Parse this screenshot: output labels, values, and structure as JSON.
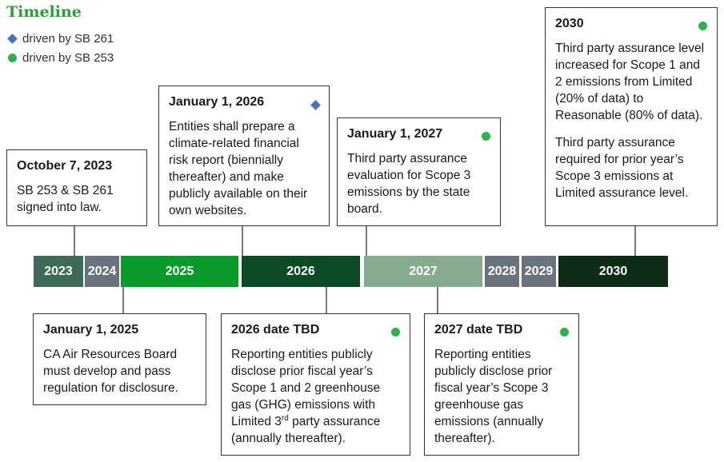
{
  "title": "Timeline",
  "legend": [
    {
      "label": "driven by SB 261",
      "icon": "diamond",
      "color": "#4a72b0"
    },
    {
      "label": "driven by SB 253",
      "icon": "dot",
      "color": "#2db34a"
    }
  ],
  "years": [
    {
      "label": "2023",
      "color": "#3d6b58"
    },
    {
      "label": "2024",
      "color": "#6a737b"
    },
    {
      "label": "2025",
      "color": "#0a9a2c"
    },
    {
      "label": "2026",
      "color": "#0b4a25"
    },
    {
      "label": "2027",
      "color": "#87ab8e"
    },
    {
      "label": "2028",
      "color": "#6a737b"
    },
    {
      "label": "2029",
      "color": "#6a737b"
    },
    {
      "label": "2030",
      "color": "#0e2b18"
    }
  ],
  "events": {
    "oct2023": {
      "date": "October 7, 2023",
      "text": "SB 253 & SB 261 signed into law."
    },
    "jan2026": {
      "date": "January 1, 2026",
      "text": "Entities shall prepare a climate-related financial risk report (biennially thereafter) and make publicly available on their own websites.",
      "marker": "diamond"
    },
    "jan2027": {
      "date": "January 1, 2027",
      "text": "Third party assurance evaluation for Scope 3 emissions by the state board.",
      "marker": "dot"
    },
    "y2030": {
      "date": "2030",
      "text1": "Third party assurance level increased for Scope 1 and 2 emissions from Limited (20% of data) to Reasonable (80% of data).",
      "text2": "Third party assurance required for prior year’s Scope 3 emissions at Limited assurance level.",
      "marker": "dot"
    },
    "jan2025": {
      "date": "January 1, 2025",
      "text": "CA Air Resources Board must develop and pass regulation for disclosure."
    },
    "tbd2026": {
      "date": "2026 date TBD",
      "text_a": "Reporting entities publicly disclose prior fiscal year’s Scope 1 and 2 greenhouse gas (GHG) emissions with Limited 3",
      "text_sup": "rd",
      "text_b": " party assurance (annually thereafter).",
      "marker": "dot"
    },
    "tbd2027": {
      "date": "2027 date TBD",
      "text": "Reporting entities publicly disclose prior fiscal year’s Scope 3 greenhouse gas emissions (annually thereafter).",
      "marker": "dot"
    }
  }
}
